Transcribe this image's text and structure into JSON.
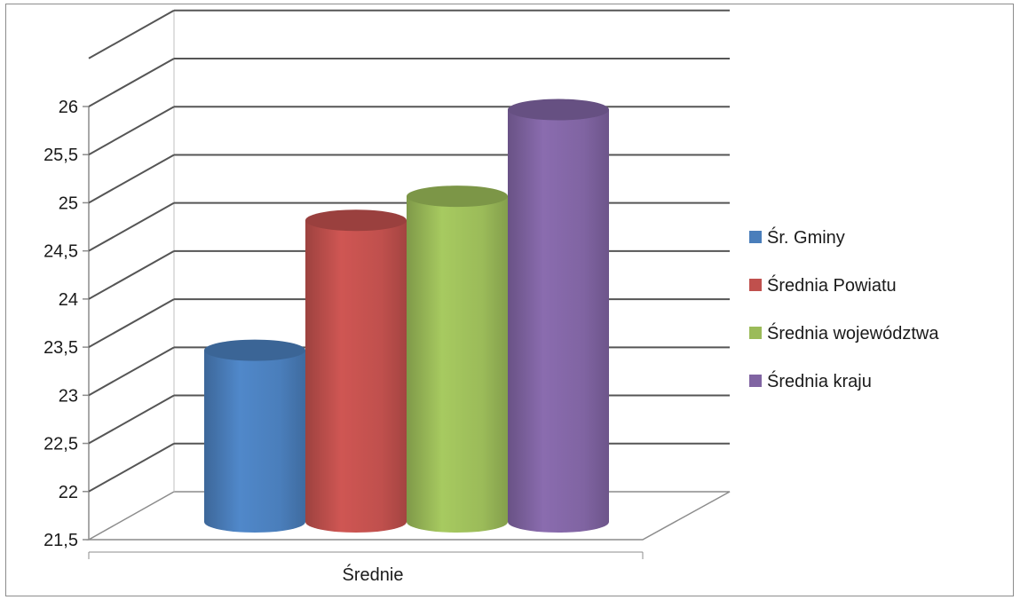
{
  "chart_data": {
    "type": "bar",
    "style": "3d-cylinder",
    "categories": [
      "Średnie"
    ],
    "series": [
      {
        "name": "Śr. Gminy",
        "values": [
          23.2
        ],
        "color": "#4a7ebb"
      },
      {
        "name": "Średnia Powiatu",
        "values": [
          24.55
        ],
        "color": "#c0504d"
      },
      {
        "name": "Średnia województwa",
        "values": [
          24.8
        ],
        "color": "#9bbb59"
      },
      {
        "name": "Średnia kraju",
        "values": [
          25.7
        ],
        "color": "#8064a2"
      }
    ],
    "ylim": [
      21.5,
      26
    ],
    "yticks": [
      "21,5",
      "22",
      "22,5",
      "23",
      "23,5",
      "24",
      "24,5",
      "25",
      "25,5",
      "26"
    ],
    "grid": true,
    "legend_position": "right"
  }
}
